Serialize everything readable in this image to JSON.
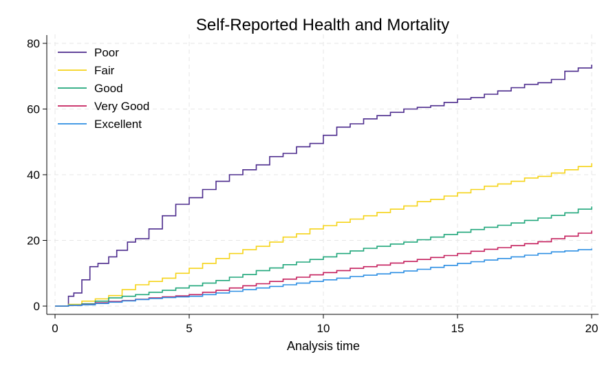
{
  "chart_data": {
    "type": "line",
    "title": "Self-Reported Health and Mortality",
    "xlabel": "Analysis time",
    "ylabel": "",
    "xlim": [
      0,
      20
    ],
    "ylim": [
      0,
      80
    ],
    "x_ticks": [
      0,
      5,
      10,
      15,
      20
    ],
    "y_ticks": [
      0,
      20,
      40,
      60,
      80
    ],
    "grid": true,
    "legend_position": "top-left",
    "step": true,
    "series": [
      {
        "name": "Poor",
        "color": "#4b2a8c",
        "points": [
          [
            0,
            0
          ],
          [
            0.5,
            3
          ],
          [
            0.7,
            4
          ],
          [
            1,
            8
          ],
          [
            1.3,
            12
          ],
          [
            1.6,
            13
          ],
          [
            2,
            15
          ],
          [
            2.3,
            17
          ],
          [
            2.7,
            19.5
          ],
          [
            3,
            20.5
          ],
          [
            3.5,
            23.5
          ],
          [
            4,
            27.5
          ],
          [
            4.5,
            31
          ],
          [
            5,
            33
          ],
          [
            5.5,
            35.5
          ],
          [
            6,
            38
          ],
          [
            6.5,
            40
          ],
          [
            7,
            41.5
          ],
          [
            7.5,
            43
          ],
          [
            8,
            45.5
          ],
          [
            8.5,
            46.5
          ],
          [
            9,
            48.5
          ],
          [
            9.5,
            49.5
          ],
          [
            10,
            52
          ],
          [
            10.5,
            54.5
          ],
          [
            11,
            55.5
          ],
          [
            11.5,
            57
          ],
          [
            12,
            58
          ],
          [
            12.5,
            59
          ],
          [
            13,
            60
          ],
          [
            13.5,
            60.5
          ],
          [
            14,
            61
          ],
          [
            14.5,
            62
          ],
          [
            15,
            63
          ],
          [
            15.5,
            63.5
          ],
          [
            16,
            64.5
          ],
          [
            16.5,
            65.5
          ],
          [
            17,
            66.5
          ],
          [
            17.5,
            67.5
          ],
          [
            18,
            68
          ],
          [
            18.5,
            69
          ],
          [
            19,
            71.5
          ],
          [
            19.5,
            72.5
          ],
          [
            20,
            73.5
          ]
        ]
      },
      {
        "name": "Fair",
        "color": "#f5d317",
        "points": [
          [
            0,
            0
          ],
          [
            0.5,
            0.5
          ],
          [
            1,
            1.5
          ],
          [
            1.5,
            2.2
          ],
          [
            2,
            3.2
          ],
          [
            2.5,
            5
          ],
          [
            3,
            6.5
          ],
          [
            3.5,
            7.5
          ],
          [
            4,
            8.5
          ],
          [
            4.5,
            10
          ],
          [
            5,
            11.5
          ],
          [
            5.5,
            13
          ],
          [
            6,
            14.5
          ],
          [
            6.5,
            16
          ],
          [
            7,
            17.2
          ],
          [
            7.5,
            18.2
          ],
          [
            8,
            19.5
          ],
          [
            8.5,
            21
          ],
          [
            9,
            22
          ],
          [
            9.5,
            23.5
          ],
          [
            10,
            24.5
          ],
          [
            10.5,
            25.5
          ],
          [
            11,
            26.5
          ],
          [
            11.5,
            27.5
          ],
          [
            12,
            28.5
          ],
          [
            12.5,
            29.5
          ],
          [
            13,
            30.5
          ],
          [
            13.5,
            31.8
          ],
          [
            14,
            32.5
          ],
          [
            14.5,
            33.5
          ],
          [
            15,
            34.5
          ],
          [
            15.5,
            35.5
          ],
          [
            16,
            36.5
          ],
          [
            16.5,
            37.2
          ],
          [
            17,
            38
          ],
          [
            17.5,
            39
          ],
          [
            18,
            39.5
          ],
          [
            18.5,
            40.5
          ],
          [
            19,
            41.5
          ],
          [
            19.5,
            42.5
          ],
          [
            20,
            43.5
          ]
        ]
      },
      {
        "name": "Good",
        "color": "#1fa67a",
        "points": [
          [
            0,
            0
          ],
          [
            0.5,
            0.3
          ],
          [
            1,
            0.7
          ],
          [
            1.5,
            1.5
          ],
          [
            2,
            2.5
          ],
          [
            2.5,
            3
          ],
          [
            3,
            3.5
          ],
          [
            3.5,
            4.2
          ],
          [
            4,
            4.8
          ],
          [
            4.5,
            5.5
          ],
          [
            5,
            6.2
          ],
          [
            5.5,
            7
          ],
          [
            6,
            7.8
          ],
          [
            6.5,
            8.8
          ],
          [
            7,
            9.6
          ],
          [
            7.5,
            10.8
          ],
          [
            8,
            11.6
          ],
          [
            8.5,
            12.6
          ],
          [
            9,
            13.4
          ],
          [
            9.5,
            14.2
          ],
          [
            10,
            15
          ],
          [
            10.5,
            16
          ],
          [
            11,
            16.8
          ],
          [
            11.5,
            17.6
          ],
          [
            12,
            18.2
          ],
          [
            12.5,
            18.9
          ],
          [
            13,
            19.5
          ],
          [
            13.5,
            20.2
          ],
          [
            14,
            21
          ],
          [
            14.5,
            21.8
          ],
          [
            15,
            22.5
          ],
          [
            15.5,
            23.3
          ],
          [
            16,
            24
          ],
          [
            16.5,
            24.6
          ],
          [
            17,
            25.3
          ],
          [
            17.5,
            26.1
          ],
          [
            18,
            26.8
          ],
          [
            18.5,
            27.6
          ],
          [
            19,
            28.4
          ],
          [
            19.5,
            29.5
          ],
          [
            20,
            30.3
          ]
        ]
      },
      {
        "name": "Very Good",
        "color": "#c41e5c",
        "points": [
          [
            0,
            0
          ],
          [
            0.5,
            0.2
          ],
          [
            1,
            0.5
          ],
          [
            1.5,
            1
          ],
          [
            2,
            1.4
          ],
          [
            2.5,
            1.7
          ],
          [
            3,
            2.1
          ],
          [
            3.5,
            2.5
          ],
          [
            4,
            2.8
          ],
          [
            4.5,
            3.1
          ],
          [
            5,
            3.5
          ],
          [
            5.5,
            4.2
          ],
          [
            6,
            4.8
          ],
          [
            6.5,
            5.5
          ],
          [
            7,
            6.2
          ],
          [
            7.5,
            6.8
          ],
          [
            8,
            7.5
          ],
          [
            8.5,
            8.2
          ],
          [
            9,
            8.8
          ],
          [
            9.5,
            9.5
          ],
          [
            10,
            10.2
          ],
          [
            10.5,
            10.8
          ],
          [
            11,
            11.5
          ],
          [
            11.5,
            12
          ],
          [
            12,
            12.5
          ],
          [
            12.5,
            13.1
          ],
          [
            13,
            13.6
          ],
          [
            13.5,
            14.2
          ],
          [
            14,
            14.8
          ],
          [
            14.5,
            15.4
          ],
          [
            15,
            16
          ],
          [
            15.5,
            16.7
          ],
          [
            16,
            17.3
          ],
          [
            16.5,
            17.8
          ],
          [
            17,
            18.4
          ],
          [
            17.5,
            19
          ],
          [
            18,
            19.6
          ],
          [
            18.5,
            20.5
          ],
          [
            19,
            21.3
          ],
          [
            19.5,
            22.2
          ],
          [
            20,
            23
          ]
        ]
      },
      {
        "name": "Excellent",
        "color": "#2b8ee3",
        "points": [
          [
            0,
            0
          ],
          [
            0.5,
            0.2
          ],
          [
            1,
            0.4
          ],
          [
            1.5,
            0.8
          ],
          [
            2,
            1.2
          ],
          [
            2.5,
            1.6
          ],
          [
            3,
            2
          ],
          [
            3.5,
            2.3
          ],
          [
            4,
            2.6
          ],
          [
            4.5,
            2.8
          ],
          [
            5,
            3
          ],
          [
            5.5,
            3.5
          ],
          [
            6,
            4
          ],
          [
            6.5,
            4.5
          ],
          [
            7,
            5
          ],
          [
            7.5,
            5.5
          ],
          [
            8,
            6
          ],
          [
            8.5,
            6.5
          ],
          [
            9,
            7
          ],
          [
            9.5,
            7.5
          ],
          [
            10,
            8
          ],
          [
            10.5,
            8.5
          ],
          [
            11,
            9
          ],
          [
            11.5,
            9.4
          ],
          [
            12,
            9.8
          ],
          [
            12.5,
            10.2
          ],
          [
            13,
            10.7
          ],
          [
            13.5,
            11.2
          ],
          [
            14,
            11.8
          ],
          [
            14.5,
            12.4
          ],
          [
            15,
            13
          ],
          [
            15.5,
            13.5
          ],
          [
            16,
            14
          ],
          [
            16.5,
            14.5
          ],
          [
            17,
            15
          ],
          [
            17.5,
            15.5
          ],
          [
            18,
            16
          ],
          [
            18.5,
            16.5
          ],
          [
            19,
            16.8
          ],
          [
            19.5,
            17.2
          ],
          [
            20,
            17.5
          ]
        ]
      }
    ]
  }
}
